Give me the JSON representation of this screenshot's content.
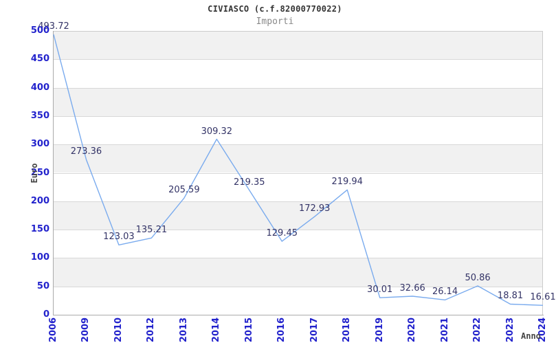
{
  "chart_data": {
    "type": "line",
    "title": "CIVIASCO (c.f.82000770022)",
    "subtitle": "Importi",
    "xlabel": "Anno",
    "ylabel": "Euro",
    "categories": [
      "2006",
      "2009",
      "2010",
      "2012",
      "2013",
      "2014",
      "2015",
      "2016",
      "2017",
      "2018",
      "2019",
      "2020",
      "2021",
      "2022",
      "2023",
      "2024"
    ],
    "values": [
      493.72,
      273.36,
      123.03,
      135.21,
      205.59,
      309.32,
      219.35,
      129.45,
      172.93,
      219.94,
      30.01,
      32.66,
      26.14,
      50.86,
      18.81,
      16.61
    ],
    "value_labels": [
      "493.72",
      "273.36",
      "123.03",
      "135.21",
      "205.59",
      "309.32",
      "219.35",
      "129.45",
      "172.93",
      "219.94",
      "30.01",
      "32.66",
      "26.14",
      "50.86",
      "18.81",
      "16.61"
    ],
    "ylim": [
      0,
      500
    ],
    "ytick_step": 50,
    "yticks": [
      0,
      50,
      100,
      150,
      200,
      250,
      300,
      350,
      400,
      450,
      500
    ],
    "grid": "horizontal",
    "banded_background": true,
    "legend": "none",
    "colors": {
      "line": "#7aabee",
      "band_gray": "#f1f1f1",
      "band_white": "#ffffff",
      "gridline": "#d8d8d8",
      "axis": "#aaaaaa",
      "plot_border": "#cccccc",
      "tick_label": "#2222cc",
      "value_label": "#333366",
      "title": "#333333",
      "subtitle": "#888888",
      "axis_title": "#444444"
    }
  }
}
